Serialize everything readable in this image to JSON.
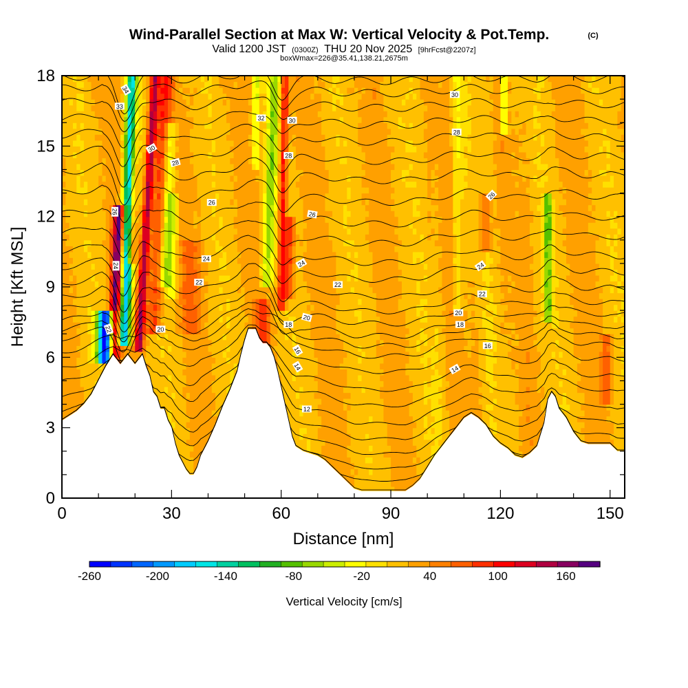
{
  "chart_data": {
    "type": "heatmap",
    "title": "Wind-Parallel Section at Max W: Vertical Velocity & Pot.Temp.",
    "title_mark": "(C)",
    "subtitle": {
      "valid": "Valid 1200 JST",
      "utc": "(0300Z)",
      "date": "THU 20 Nov 2025",
      "forecast": "[9hrFcst@2207z]"
    },
    "box_info": "boxWmax=226@35.41,138.21,2675m",
    "xlabel": "Distance [nm]",
    "ylabel": "Height [Kft MSL]",
    "xlim": [
      0,
      154
    ],
    "ylim": [
      0,
      18
    ],
    "x_ticks": [
      0,
      30,
      60,
      90,
      120,
      150
    ],
    "y_ticks": [
      0,
      3,
      6,
      9,
      12,
      15,
      18
    ],
    "colorbar": {
      "label": "Vertical Velocity [cm/s]",
      "min": -260,
      "max": 190,
      "tick_values": [
        -260,
        -200,
        -140,
        -80,
        -20,
        40,
        100,
        160
      ],
      "colors": [
        "#0000ff",
        "#0033ff",
        "#0066ff",
        "#0099ff",
        "#00ccff",
        "#00e5e5",
        "#00d1a0",
        "#00c060",
        "#22b022",
        "#55c000",
        "#99d800",
        "#ccee00",
        "#ffff00",
        "#ffe000",
        "#ffc000",
        "#ffa000",
        "#ff8000",
        "#ff6000",
        "#ff3000",
        "#ff0000",
        "#dd0020",
        "#b00040",
        "#880060",
        "#550080"
      ]
    },
    "velocity_features": [
      {
        "x": 14,
        "y0": 5.5,
        "y1": 12.5,
        "w": 1.5,
        "value": 180,
        "lean": 0.25
      },
      {
        "x": 12,
        "y0": 5.8,
        "y1": 8.0,
        "w": 2.2,
        "value": -250,
        "lean": 0.0
      },
      {
        "x": 17,
        "y0": 6.5,
        "y1": 18,
        "w": 1.6,
        "value": -200,
        "lean": 0.22
      },
      {
        "x": 19,
        "y0": 10,
        "y1": 18,
        "w": 1.2,
        "value": 110,
        "lean": 0.15
      },
      {
        "x": 21,
        "y0": 6.2,
        "y1": 18,
        "w": 1.2,
        "value": 150,
        "lean": 0.38
      },
      {
        "x": 25,
        "y0": 7,
        "y1": 18,
        "w": 2.0,
        "value": 90,
        "lean": 0.3
      },
      {
        "x": 28,
        "y0": 9,
        "y1": 16,
        "w": 1.5,
        "value": -50,
        "lean": 0.25
      },
      {
        "x": 30,
        "y0": 8.5,
        "y1": 13,
        "w": 1.5,
        "value": -30,
        "lean": 0.1
      },
      {
        "x": 35,
        "y0": 7,
        "y1": 11,
        "w": 2.5,
        "value": 60,
        "lean": 0.0
      },
      {
        "x": 53,
        "y0": 14,
        "y1": 18,
        "w": 1.0,
        "value": -40,
        "lean": 0.0
      },
      {
        "x": 56,
        "y0": 9,
        "y1": 18,
        "w": 1.6,
        "value": -60,
        "lean": 0.25
      },
      {
        "x": 60,
        "y0": 8,
        "y1": 18,
        "w": 1.1,
        "value": 110,
        "lean": 0.1
      },
      {
        "x": 62,
        "y0": 8.5,
        "y1": 12,
        "w": 1.4,
        "value": 90,
        "lean": 0.1
      },
      {
        "x": 55,
        "y0": 6.5,
        "y1": 8.5,
        "w": 2.0,
        "value": 80,
        "lean": 0.0
      },
      {
        "x": 108,
        "y0": 8,
        "y1": 18,
        "w": 1.2,
        "value": -20,
        "lean": 0.0
      },
      {
        "x": 116,
        "y0": 10.5,
        "y1": 13,
        "w": 1.5,
        "value": 70,
        "lean": 0.0
      },
      {
        "x": 121,
        "y0": 15.5,
        "y1": 18,
        "w": 1.0,
        "value": -60,
        "lean": 0.0
      },
      {
        "x": 133,
        "y0": 7.5,
        "y1": 13,
        "w": 1.0,
        "value": -80,
        "lean": 0.0
      },
      {
        "x": 149,
        "y0": 4,
        "y1": 7,
        "w": 1.5,
        "value": 70,
        "lean": 0.0
      },
      {
        "x": 82,
        "y0": 0.5,
        "y1": 6,
        "w": 4.0,
        "value": 20,
        "lean": 0.0
      },
      {
        "x": 100,
        "y0": 2,
        "y1": 7,
        "w": 5.0,
        "value": 15,
        "lean": 0.0
      }
    ],
    "terrain": [
      {
        "x": 0,
        "y": 3.3
      },
      {
        "x": 2,
        "y": 3.5
      },
      {
        "x": 4,
        "y": 3.7
      },
      {
        "x": 6,
        "y": 4.0
      },
      {
        "x": 8,
        "y": 4.4
      },
      {
        "x": 10,
        "y": 5.0
      },
      {
        "x": 12,
        "y": 5.6
      },
      {
        "x": 14,
        "y": 6.1
      },
      {
        "x": 16,
        "y": 5.7
      },
      {
        "x": 18,
        "y": 6.1
      },
      {
        "x": 20,
        "y": 5.7
      },
      {
        "x": 22,
        "y": 6.1
      },
      {
        "x": 23,
        "y": 5.6
      },
      {
        "x": 24,
        "y": 5.2
      },
      {
        "x": 25,
        "y": 4.5
      },
      {
        "x": 26,
        "y": 4.3
      },
      {
        "x": 27,
        "y": 3.8
      },
      {
        "x": 28,
        "y": 3.8
      },
      {
        "x": 29,
        "y": 3.3
      },
      {
        "x": 30,
        "y": 3.0
      },
      {
        "x": 31,
        "y": 2.3
      },
      {
        "x": 32,
        "y": 1.8
      },
      {
        "x": 33,
        "y": 1.5
      },
      {
        "x": 34,
        "y": 1.2
      },
      {
        "x": 35,
        "y": 1.0
      },
      {
        "x": 36,
        "y": 1.0
      },
      {
        "x": 37,
        "y": 1.3
      },
      {
        "x": 38,
        "y": 1.8
      },
      {
        "x": 40,
        "y": 2.4
      },
      {
        "x": 42,
        "y": 3.1
      },
      {
        "x": 44,
        "y": 3.9
      },
      {
        "x": 46,
        "y": 4.6
      },
      {
        "x": 48,
        "y": 5.4
      },
      {
        "x": 49,
        "y": 6.1
      },
      {
        "x": 50,
        "y": 6.7
      },
      {
        "x": 51,
        "y": 7.2
      },
      {
        "x": 53,
        "y": 7.2
      },
      {
        "x": 54,
        "y": 6.8
      },
      {
        "x": 55,
        "y": 6.6
      },
      {
        "x": 56,
        "y": 6.6
      },
      {
        "x": 57,
        "y": 6.4
      },
      {
        "x": 58,
        "y": 6.0
      },
      {
        "x": 59,
        "y": 5.4
      },
      {
        "x": 60,
        "y": 4.7
      },
      {
        "x": 61,
        "y": 4.0
      },
      {
        "x": 62,
        "y": 3.3
      },
      {
        "x": 63,
        "y": 2.6
      },
      {
        "x": 64,
        "y": 2.2
      },
      {
        "x": 66,
        "y": 2.0
      },
      {
        "x": 68,
        "y": 1.9
      },
      {
        "x": 70,
        "y": 1.8
      },
      {
        "x": 72,
        "y": 1.6
      },
      {
        "x": 74,
        "y": 1.3
      },
      {
        "x": 76,
        "y": 1.0
      },
      {
        "x": 78,
        "y": 0.7
      },
      {
        "x": 80,
        "y": 0.4
      },
      {
        "x": 82,
        "y": 0.3
      },
      {
        "x": 86,
        "y": 0.3
      },
      {
        "x": 90,
        "y": 0.3
      },
      {
        "x": 94,
        "y": 0.3
      },
      {
        "x": 96,
        "y": 0.5
      },
      {
        "x": 98,
        "y": 0.8
      },
      {
        "x": 100,
        "y": 1.3
      },
      {
        "x": 102,
        "y": 1.8
      },
      {
        "x": 104,
        "y": 2.2
      },
      {
        "x": 106,
        "y": 2.6
      },
      {
        "x": 108,
        "y": 3.0
      },
      {
        "x": 110,
        "y": 3.4
      },
      {
        "x": 112,
        "y": 3.6
      },
      {
        "x": 114,
        "y": 3.4
      },
      {
        "x": 116,
        "y": 3.1
      },
      {
        "x": 118,
        "y": 2.6
      },
      {
        "x": 120,
        "y": 2.3
      },
      {
        "x": 122,
        "y": 2.1
      },
      {
        "x": 124,
        "y": 1.8
      },
      {
        "x": 126,
        "y": 1.7
      },
      {
        "x": 128,
        "y": 1.9
      },
      {
        "x": 130,
        "y": 2.2
      },
      {
        "x": 132,
        "y": 3.2
      },
      {
        "x": 133,
        "y": 4.2
      },
      {
        "x": 134,
        "y": 4.5
      },
      {
        "x": 135,
        "y": 4.3
      },
      {
        "x": 136,
        "y": 3.8
      },
      {
        "x": 138,
        "y": 3.4
      },
      {
        "x": 140,
        "y": 2.8
      },
      {
        "x": 142,
        "y": 2.4
      },
      {
        "x": 144,
        "y": 2.3
      },
      {
        "x": 146,
        "y": 2.3
      },
      {
        "x": 148,
        "y": 2.3
      },
      {
        "x": 150,
        "y": 2.3
      },
      {
        "x": 152,
        "y": 2.0
      },
      {
        "x": 154,
        "y": 2.0
      }
    ],
    "theta_contours": [
      {
        "level": 8,
        "h": 1.2,
        "phase": 0.8
      },
      {
        "level": 9,
        "h": 1.7,
        "phase": 0.78
      },
      {
        "level": 10,
        "h": 2.2,
        "phase": 0.76
      },
      {
        "level": 11,
        "h": 2.8,
        "phase": 0.74
      },
      {
        "level": 12,
        "h": 3.4,
        "phase": 0.72
      },
      {
        "level": 13,
        "h": 4.0,
        "phase": 0.68
      },
      {
        "level": 14,
        "h": 4.7,
        "phase": 0.62
      },
      {
        "level": 15,
        "h": 5.3,
        "phase": 0.56
      },
      {
        "level": 16,
        "h": 6.0,
        "phase": 0.5
      },
      {
        "level": 17,
        "h": 6.6,
        "phase": 0.45
      },
      {
        "level": 18,
        "h": 7.0,
        "phase": 0.42
      },
      {
        "level": 19,
        "h": 7.4,
        "phase": 0.4
      },
      {
        "level": 20,
        "h": 7.9,
        "phase": 0.38
      },
      {
        "level": 21,
        "h": 8.4,
        "phase": 0.36
      },
      {
        "level": 22,
        "h": 9.0,
        "phase": 0.34
      },
      {
        "level": 23,
        "h": 9.7,
        "phase": 0.32
      },
      {
        "level": 24,
        "h": 10.4,
        "phase": 0.3
      },
      {
        "level": 25,
        "h": 11.2,
        "phase": 0.28
      },
      {
        "level": 26,
        "h": 12.0,
        "phase": 0.26
      },
      {
        "level": 27,
        "h": 12.9,
        "phase": 0.24
      },
      {
        "level": 28,
        "h": 13.8,
        "phase": 0.22
      },
      {
        "level": 29,
        "h": 14.6,
        "phase": 0.2
      },
      {
        "level": 30,
        "h": 15.4,
        "phase": 0.18
      },
      {
        "level": 31,
        "h": 16.1,
        "phase": 0.16
      },
      {
        "level": 32,
        "h": 16.8,
        "phase": 0.14
      },
      {
        "level": 33,
        "h": 17.4,
        "phase": 0.12
      },
      {
        "level": 34,
        "h": 17.9,
        "phase": 0.1
      }
    ],
    "contour_labels": [
      {
        "text": "34",
        "x": 17.5,
        "y": 17.4,
        "rot": 60
      },
      {
        "text": "33",
        "x": 15.8,
        "y": 16.7,
        "rot": 0
      },
      {
        "text": "32",
        "x": 54.5,
        "y": 16.2,
        "rot": 0
      },
      {
        "text": "30",
        "x": 63,
        "y": 16.1,
        "rot": 0
      },
      {
        "text": "30",
        "x": 107.5,
        "y": 17.2,
        "rot": 0
      },
      {
        "text": "30",
        "x": 24.5,
        "y": 14.9,
        "rot": -30
      },
      {
        "text": "28",
        "x": 31,
        "y": 14.3,
        "rot": -15
      },
      {
        "text": "28",
        "x": 62,
        "y": 14.6,
        "rot": 0
      },
      {
        "text": "28",
        "x": 108,
        "y": 15.6,
        "rot": 0
      },
      {
        "text": "26",
        "x": 41,
        "y": 12.6,
        "rot": 0
      },
      {
        "text": "26",
        "x": 68.5,
        "y": 12.1,
        "rot": 10
      },
      {
        "text": "26",
        "x": 117.5,
        "y": 12.9,
        "rot": -45
      },
      {
        "text": "26",
        "x": 14.5,
        "y": 12.2,
        "rot": 90
      },
      {
        "text": "24",
        "x": 39.5,
        "y": 10.2,
        "rot": 0
      },
      {
        "text": "24",
        "x": 65.5,
        "y": 10.0,
        "rot": -30
      },
      {
        "text": "24",
        "x": 114.5,
        "y": 9.9,
        "rot": -35
      },
      {
        "text": "24",
        "x": 14.8,
        "y": 9.9,
        "rot": 90
      },
      {
        "text": "22",
        "x": 37.5,
        "y": 9.2,
        "rot": 0
      },
      {
        "text": "22",
        "x": 75.5,
        "y": 9.1,
        "rot": 0
      },
      {
        "text": "22",
        "x": 115,
        "y": 8.7,
        "rot": 0
      },
      {
        "text": "22",
        "x": 12.8,
        "y": 7.2,
        "rot": 70
      },
      {
        "text": "20",
        "x": 27,
        "y": 7.2,
        "rot": 0
      },
      {
        "text": "20",
        "x": 67,
        "y": 7.7,
        "rot": 15
      },
      {
        "text": "20",
        "x": 108.5,
        "y": 7.9,
        "rot": 0
      },
      {
        "text": "18",
        "x": 62,
        "y": 7.4,
        "rot": 0
      },
      {
        "text": "18",
        "x": 109,
        "y": 7.4,
        "rot": 0
      },
      {
        "text": "16",
        "x": 64.5,
        "y": 6.3,
        "rot": 60
      },
      {
        "text": "16",
        "x": 116.5,
        "y": 6.5,
        "rot": 0
      },
      {
        "text": "14",
        "x": 64.5,
        "y": 5.6,
        "rot": 60
      },
      {
        "text": "14",
        "x": 107.5,
        "y": 5.5,
        "rot": -30
      },
      {
        "text": "12",
        "x": 67,
        "y": 3.8,
        "rot": 0
      }
    ]
  }
}
